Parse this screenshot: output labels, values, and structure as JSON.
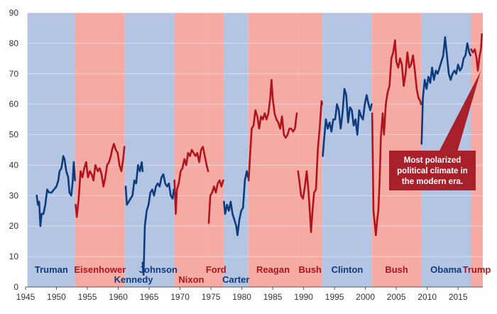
{
  "colors": {
    "dem_band": "#b4c5e4",
    "rep_band": "#f5aaa4",
    "dem_line": "#0d3c7c",
    "rep_line": "#b0141c",
    "callout": "#a8202a"
  },
  "chart_data": {
    "type": "line",
    "title": "",
    "xlabel": "",
    "ylabel": "",
    "xlim": [
      1945,
      2019
    ],
    "ylim": [
      0,
      90
    ],
    "x_ticks": [
      "1945",
      "1950",
      "1955",
      "1960",
      "1965",
      "1970",
      "1975",
      "1980",
      "1985",
      "1990",
      "1995",
      "2000",
      "2005",
      "2010",
      "2015"
    ],
    "y_ticks": [
      "0",
      "10",
      "20",
      "30",
      "40",
      "50",
      "60",
      "70",
      "80",
      "90"
    ],
    "grid": "horizontal",
    "presidencies": [
      {
        "name": "Truman",
        "party": "D",
        "start": 1945.3,
        "end": 1953.05,
        "label_level": "high"
      },
      {
        "name": "Eisenhower",
        "party": "R",
        "start": 1953.05,
        "end": 1961.05,
        "label_level": "high"
      },
      {
        "name": "Kennedy",
        "party": "D",
        "start": 1961.05,
        "end": 1963.9,
        "label_level": "low"
      },
      {
        "name": "Johnson",
        "party": "D",
        "start": 1963.9,
        "end": 1969.05,
        "label_level": "high"
      },
      {
        "name": "Nixon",
        "party": "R",
        "start": 1969.05,
        "end": 1974.6,
        "label_level": "low"
      },
      {
        "name": "Ford",
        "party": "R",
        "start": 1974.6,
        "end": 1977.05,
        "label_level": "high"
      },
      {
        "name": "Carter",
        "party": "D",
        "start": 1977.05,
        "end": 1981.05,
        "label_level": "low"
      },
      {
        "name": "Reagan",
        "party": "R",
        "start": 1981.05,
        "end": 1989.05,
        "label_level": "high"
      },
      {
        "name": "Bush",
        "party": "R",
        "start": 1989.05,
        "end": 1993.05,
        "label_level": "high"
      },
      {
        "name": "Clinton",
        "party": "D",
        "start": 1993.05,
        "end": 2001.05,
        "label_level": "high"
      },
      {
        "name": "Bush",
        "party": "R",
        "start": 2001.05,
        "end": 2009.05,
        "label_level": "high"
      },
      {
        "name": "Obama",
        "party": "D",
        "start": 2009.05,
        "end": 2017.05,
        "label_level": "high"
      },
      {
        "name": "Trump",
        "party": "R",
        "start": 2017.05,
        "end": 2019,
        "label_level": "high"
      }
    ],
    "series": [
      {
        "party": "D",
        "points": [
          [
            1946.8,
            30
          ],
          [
            1947.0,
            27
          ],
          [
            1947.2,
            28
          ],
          [
            1947.4,
            20
          ],
          [
            1947.6,
            24
          ],
          [
            1947.9,
            24
          ],
          [
            1948.2,
            27
          ],
          [
            1948.5,
            32
          ],
          [
            1948.8,
            31
          ],
          [
            1949.2,
            31
          ],
          [
            1949.6,
            32
          ],
          [
            1950.0,
            33
          ],
          [
            1950.3,
            35
          ],
          [
            1950.5,
            38
          ],
          [
            1950.8,
            39
          ],
          [
            1951.1,
            43
          ],
          [
            1951.3,
            42
          ],
          [
            1951.6,
            38
          ],
          [
            1951.9,
            36
          ],
          [
            1952.1,
            31
          ],
          [
            1952.4,
            30
          ],
          [
            1952.6,
            34
          ],
          [
            1952.8,
            41
          ],
          [
            1953.0,
            35
          ]
        ]
      },
      {
        "party": "R",
        "points": [
          [
            1953.1,
            27
          ],
          [
            1953.3,
            23
          ],
          [
            1953.6,
            29
          ],
          [
            1953.9,
            38
          ],
          [
            1954.2,
            36
          ],
          [
            1954.5,
            39
          ],
          [
            1954.8,
            41
          ],
          [
            1955.1,
            36
          ],
          [
            1955.4,
            38
          ],
          [
            1955.7,
            37
          ],
          [
            1956.0,
            35
          ],
          [
            1956.3,
            40
          ],
          [
            1956.7,
            38
          ],
          [
            1957.0,
            39
          ],
          [
            1957.3,
            37
          ],
          [
            1957.6,
            33
          ],
          [
            1957.9,
            36
          ],
          [
            1958.2,
            40
          ],
          [
            1958.5,
            41
          ],
          [
            1958.8,
            43
          ],
          [
            1959.0,
            45
          ],
          [
            1959.3,
            47
          ],
          [
            1959.6,
            45
          ],
          [
            1959.9,
            44
          ],
          [
            1960.2,
            40
          ],
          [
            1960.5,
            38
          ],
          [
            1960.8,
            42
          ],
          [
            1961.0,
            46
          ]
        ]
      },
      {
        "party": "D",
        "points": [
          [
            1961.2,
            33
          ],
          [
            1961.4,
            27
          ],
          [
            1961.7,
            28
          ],
          [
            1962.0,
            29
          ],
          [
            1962.3,
            30
          ],
          [
            1962.6,
            35
          ],
          [
            1962.9,
            34
          ],
          [
            1963.2,
            40
          ],
          [
            1963.5,
            38
          ],
          [
            1963.8,
            41
          ],
          [
            1963.95,
            38
          ]
        ]
      },
      {
        "party": "D",
        "points": [
          [
            1963.95,
            8
          ],
          [
            1964.1,
            4
          ],
          [
            1964.3,
            20
          ],
          [
            1964.6,
            25
          ],
          [
            1964.9,
            27
          ],
          [
            1965.2,
            31
          ],
          [
            1965.5,
            32
          ],
          [
            1965.8,
            30
          ],
          [
            1966.1,
            33
          ],
          [
            1966.4,
            34
          ],
          [
            1966.7,
            33
          ],
          [
            1967.0,
            36
          ],
          [
            1967.3,
            37
          ],
          [
            1967.6,
            34
          ],
          [
            1967.9,
            33
          ],
          [
            1968.2,
            34
          ],
          [
            1968.5,
            30
          ],
          [
            1968.8,
            29
          ],
          [
            1969.0,
            32
          ]
        ]
      },
      {
        "party": "R",
        "points": [
          [
            1969.1,
            35
          ],
          [
            1969.3,
            24
          ],
          [
            1969.5,
            32
          ],
          [
            1969.8,
            34
          ],
          [
            1970.1,
            38
          ],
          [
            1970.4,
            39
          ],
          [
            1970.7,
            42
          ],
          [
            1971.0,
            40
          ],
          [
            1971.3,
            44
          ],
          [
            1971.6,
            43
          ],
          [
            1971.9,
            45
          ],
          [
            1972.2,
            44
          ],
          [
            1972.5,
            43
          ],
          [
            1972.8,
            44
          ],
          [
            1973.1,
            41
          ],
          [
            1973.4,
            45
          ],
          [
            1973.7,
            46
          ],
          [
            1974.0,
            43
          ],
          [
            1974.3,
            40
          ],
          [
            1974.55,
            38
          ]
        ]
      },
      {
        "party": "R",
        "points": [
          [
            1974.65,
            21
          ],
          [
            1974.9,
            30
          ],
          [
            1975.2,
            31
          ],
          [
            1975.5,
            33
          ],
          [
            1975.8,
            31
          ],
          [
            1976.1,
            34
          ],
          [
            1976.4,
            35
          ],
          [
            1976.7,
            33
          ],
          [
            1977.0,
            35
          ]
        ]
      },
      {
        "party": "D",
        "points": [
          [
            1977.1,
            28
          ],
          [
            1977.3,
            24
          ],
          [
            1977.6,
            27
          ],
          [
            1977.9,
            25
          ],
          [
            1978.2,
            28
          ],
          [
            1978.5,
            24
          ],
          [
            1978.8,
            22
          ],
          [
            1979.1,
            20
          ],
          [
            1979.3,
            17
          ],
          [
            1979.6,
            22
          ],
          [
            1979.9,
            25
          ],
          [
            1980.2,
            26
          ],
          [
            1980.5,
            35
          ],
          [
            1980.8,
            38
          ],
          [
            1981.0,
            36
          ]
        ]
      },
      {
        "party": "R",
        "points": [
          [
            1981.1,
            35
          ],
          [
            1981.3,
            42
          ],
          [
            1981.6,
            52
          ],
          [
            1981.9,
            53
          ],
          [
            1982.2,
            58
          ],
          [
            1982.5,
            56
          ],
          [
            1982.8,
            52
          ],
          [
            1983.1,
            56
          ],
          [
            1983.4,
            55
          ],
          [
            1983.7,
            57
          ],
          [
            1984.0,
            55
          ],
          [
            1984.3,
            57
          ],
          [
            1984.6,
            62
          ],
          [
            1984.8,
            68
          ],
          [
            1985.0,
            62
          ],
          [
            1985.3,
            57
          ],
          [
            1985.6,
            55
          ],
          [
            1985.9,
            54
          ],
          [
            1986.2,
            52
          ],
          [
            1986.5,
            56
          ],
          [
            1986.8,
            50
          ],
          [
            1987.1,
            49
          ],
          [
            1987.4,
            50
          ],
          [
            1987.7,
            52
          ],
          [
            1988.0,
            52
          ],
          [
            1988.3,
            51
          ],
          [
            1988.6,
            52
          ],
          [
            1988.9,
            57
          ]
        ]
      },
      {
        "party": "R",
        "points": [
          [
            1989.1,
            38
          ],
          [
            1989.3,
            35
          ],
          [
            1989.6,
            30
          ],
          [
            1989.9,
            29
          ],
          [
            1990.2,
            33
          ],
          [
            1990.5,
            38
          ],
          [
            1990.8,
            31
          ],
          [
            1991.0,
            25
          ],
          [
            1991.2,
            18
          ],
          [
            1991.4,
            24
          ],
          [
            1991.7,
            31
          ],
          [
            1992.0,
            32
          ],
          [
            1992.3,
            45
          ],
          [
            1992.6,
            52
          ],
          [
            1992.9,
            61
          ],
          [
            1993.0,
            60
          ]
        ]
      },
      {
        "party": "D",
        "points": [
          [
            1993.1,
            43
          ],
          [
            1993.3,
            48
          ],
          [
            1993.6,
            55
          ],
          [
            1993.9,
            52
          ],
          [
            1994.2,
            54
          ],
          [
            1994.5,
            51
          ],
          [
            1994.8,
            55
          ],
          [
            1995.1,
            55
          ],
          [
            1995.4,
            60
          ],
          [
            1995.7,
            58
          ],
          [
            1996.0,
            52
          ],
          [
            1996.3,
            57
          ],
          [
            1996.6,
            65
          ],
          [
            1996.9,
            63
          ],
          [
            1997.2,
            54
          ],
          [
            1997.5,
            59
          ],
          [
            1997.8,
            58
          ],
          [
            1998.1,
            53
          ],
          [
            1998.4,
            55
          ],
          [
            1998.7,
            50
          ],
          [
            1999.0,
            58
          ],
          [
            1999.3,
            56
          ],
          [
            1999.6,
            55
          ],
          [
            1999.9,
            60
          ],
          [
            2000.2,
            63
          ],
          [
            2000.5,
            60
          ],
          [
            2000.8,
            58
          ],
          [
            2001.0,
            60
          ]
        ]
      },
      {
        "party": "R",
        "points": [
          [
            2001.1,
            57
          ],
          [
            2001.3,
            25
          ],
          [
            2001.5,
            21
          ],
          [
            2001.7,
            17
          ],
          [
            2001.9,
            22
          ],
          [
            2002.1,
            25
          ],
          [
            2002.3,
            35
          ],
          [
            2002.5,
            49
          ],
          [
            2002.8,
            57
          ],
          [
            2003.0,
            50
          ],
          [
            2003.3,
            60
          ],
          [
            2003.6,
            64
          ],
          [
            2003.9,
            66
          ],
          [
            2004.2,
            75
          ],
          [
            2004.5,
            77
          ],
          [
            2004.8,
            81
          ],
          [
            2005.0,
            74
          ],
          [
            2005.3,
            72
          ],
          [
            2005.6,
            75
          ],
          [
            2005.9,
            73
          ],
          [
            2006.2,
            66
          ],
          [
            2006.5,
            70
          ],
          [
            2006.8,
            77
          ],
          [
            2007.1,
            72
          ],
          [
            2007.4,
            73
          ],
          [
            2007.7,
            76
          ],
          [
            2008.0,
            71
          ],
          [
            2008.3,
            65
          ],
          [
            2008.6,
            62
          ],
          [
            2008.9,
            61
          ],
          [
            2009.0,
            60
          ]
        ]
      },
      {
        "party": "D",
        "points": [
          [
            2009.1,
            47
          ],
          [
            2009.3,
            62
          ],
          [
            2009.6,
            68
          ],
          [
            2009.9,
            65
          ],
          [
            2010.2,
            69
          ],
          [
            2010.5,
            67
          ],
          [
            2010.8,
            72
          ],
          [
            2011.1,
            68
          ],
          [
            2011.4,
            71
          ],
          [
            2011.7,
            70
          ],
          [
            2012.0,
            72
          ],
          [
            2012.3,
            74
          ],
          [
            2012.6,
            76
          ],
          [
            2012.9,
            82
          ],
          [
            2013.2,
            76
          ],
          [
            2013.5,
            70
          ],
          [
            2013.8,
            68
          ],
          [
            2014.1,
            70
          ],
          [
            2014.4,
            71
          ],
          [
            2014.7,
            70
          ],
          [
            2015.0,
            73
          ],
          [
            2015.3,
            71
          ],
          [
            2015.6,
            72
          ],
          [
            2015.9,
            75
          ],
          [
            2016.2,
            76
          ],
          [
            2016.5,
            80
          ],
          [
            2016.8,
            77
          ],
          [
            2017.0,
            76
          ]
        ]
      },
      {
        "party": "R",
        "points": [
          [
            2017.1,
            78
          ],
          [
            2017.4,
            77
          ],
          [
            2017.7,
            78
          ],
          [
            2018.0,
            75
          ],
          [
            2018.2,
            71
          ],
          [
            2018.5,
            76
          ],
          [
            2018.7,
            78
          ],
          [
            2018.85,
            83
          ]
        ]
      }
    ],
    "annotation": {
      "text_lines": [
        "Most polarized",
        "political climate in",
        "the modern era."
      ],
      "arrow_target": [
        2018.7,
        71
      ]
    }
  }
}
